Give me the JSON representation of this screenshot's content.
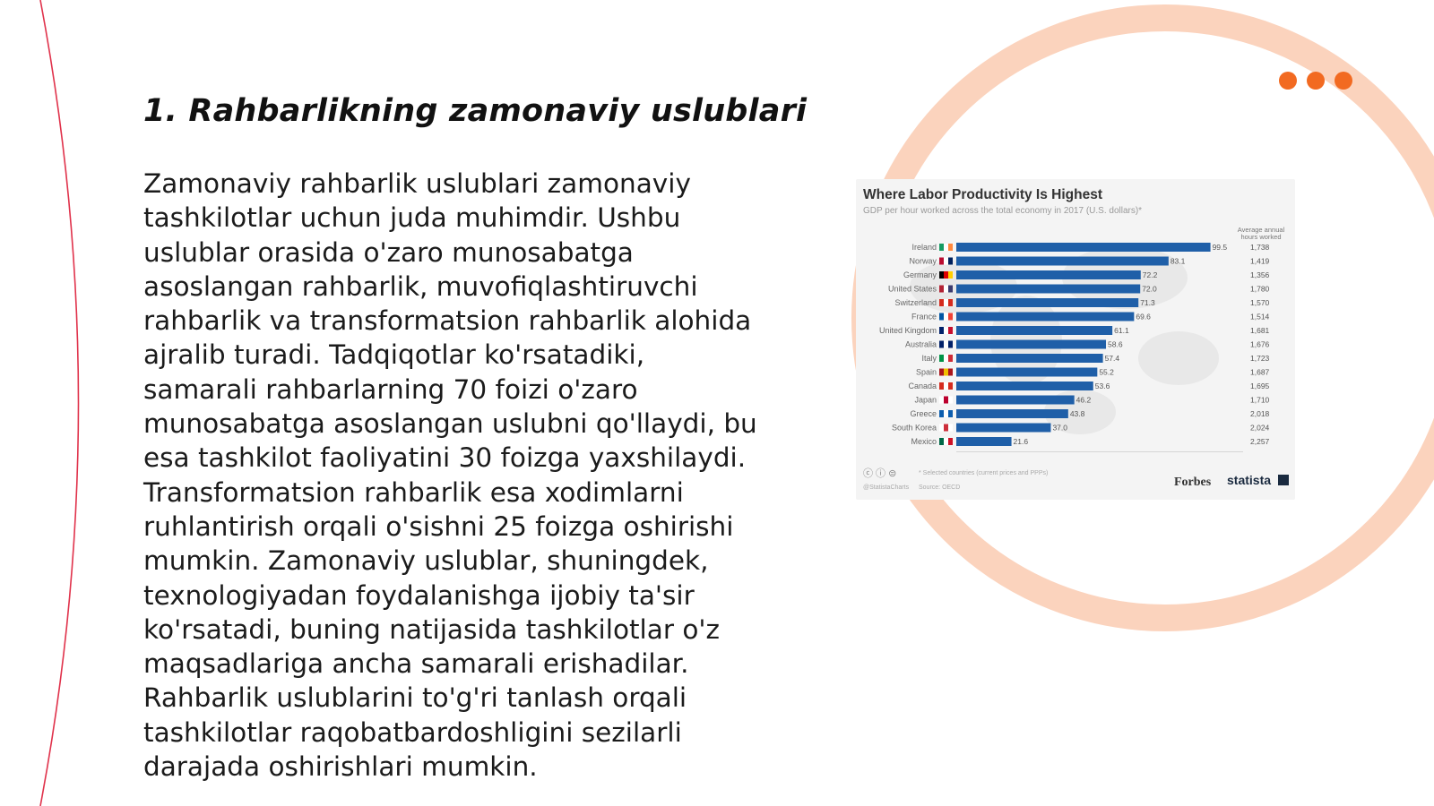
{
  "slide": {
    "title": "1. Rahbarlikning zamonaviy uslublari",
    "body": "Zamonaviy rahbarlik uslublari zamonaviy tashkilotlar uchun juda muhimdir. Ushbu uslublar orasida o'zaro munosabatga asoslangan rahbarlik, muvofiqlashtiruvchi rahbarlik va transformatsion rahbarlik alohida ajralib turadi. Tadqiqotlar ko'rsatadiki, samarali rahbarlarning 70 foizi o'zaro munosabatga asoslangan uslubni qo'llaydi, bu esa tashkilot faoliyatini 30 foizga yaxshilaydi. Transformatsion rahbarlik esa xodimlarni ruhlantirish orqali o'sishni 25 foizga oshirishi mumkin. Zamonaviy uslublar, shuningdek, texnologiyadan foydalanishga ijobiy ta'sir ko'rsatadi, buning natijasida tashkilotlar o'z maqsadlariga ancha samarali erishadilar. Rahbarlik uslublarini to'g'ri tanlash orqali tashkilotlar raqobatbardoshligini sezilarli darajada oshirishlari mumkin.",
    "accent_color": "#f26a21",
    "ring_color": "#fbd3bd",
    "line_color": "#e0324b",
    "menu_icon": "three-dots-icon"
  },
  "chart_data": {
    "type": "bar",
    "orientation": "horizontal",
    "title": "Where Labor Productivity Is Highest",
    "subtitle": "GDP per hour worked across the total economy in 2017 (U.S. dollars)*",
    "column_header_line1": "Average annual",
    "column_header_line2": "hours worked",
    "categories": [
      "Ireland",
      "Norway",
      "Germany",
      "United States",
      "Switzerland",
      "France",
      "United Kingdom",
      "Australia",
      "Italy",
      "Spain",
      "Canada",
      "Japan",
      "Greece",
      "South Korea",
      "Mexico"
    ],
    "values": [
      99.5,
      83.1,
      72.2,
      72.0,
      71.3,
      69.6,
      61.1,
      58.6,
      57.4,
      55.2,
      53.6,
      46.2,
      43.8,
      37.0,
      21.6
    ],
    "value_labels": [
      "99.5",
      "83.1",
      "72.2",
      "72.0",
      "71.3",
      "69.6",
      "61.1",
      "58.6",
      "57.4",
      "55.2",
      "53.6",
      "46.2",
      "43.8",
      "37.0",
      "21.6"
    ],
    "hours_worked": [
      "1,738",
      "1,419",
      "1,356",
      "1,780",
      "1,570",
      "1,514",
      "1,681",
      "1,676",
      "1,723",
      "1,687",
      "1,695",
      "1,710",
      "2,018",
      "2,024",
      "2,257"
    ],
    "xlim": [
      0,
      100
    ],
    "bar_color": "#1f5fa8",
    "footnote": "* Selected countries (current prices and PPPs)",
    "source": "Source: OECD",
    "handle": "@StatistaCharts",
    "brand_1": "Forbes",
    "brand_2": "statista"
  }
}
